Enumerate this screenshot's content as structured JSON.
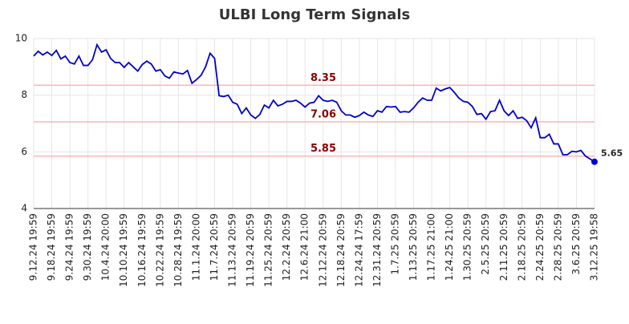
{
  "chart_data": {
    "type": "line",
    "title": "ULBI Long Term Signals",
    "categories": [
      "9.12.24 19:59",
      null,
      null,
      null,
      "9.18.24 19:59",
      null,
      null,
      null,
      "9.24.24 19:59",
      null,
      null,
      null,
      "9.30.24 19:59",
      null,
      null,
      null,
      "10.4.24 20:00",
      null,
      null,
      null,
      "10.10.24 19:59",
      null,
      null,
      null,
      "10.16.24 19:59",
      null,
      null,
      null,
      "10.22.24 19:59",
      null,
      null,
      null,
      "10.28.24 19:59",
      null,
      null,
      null,
      "11.1.24 20:00",
      null,
      null,
      null,
      "11.7.24 20:59",
      null,
      null,
      null,
      "11.13.24 20:59",
      null,
      null,
      null,
      "11.19.24 20:59",
      null,
      null,
      null,
      "11.25.24 20:59",
      null,
      null,
      null,
      "12.2.24 20:59",
      null,
      null,
      null,
      "12.6.24 21:00",
      null,
      null,
      null,
      "12.12.24 20:59",
      null,
      null,
      null,
      "12.18.24 20:59",
      null,
      null,
      null,
      "12.24.24 17:59",
      null,
      null,
      null,
      "12.31.24 20:59",
      null,
      null,
      null,
      "1.7.25 20:59",
      null,
      null,
      null,
      "1.13.25 20:59",
      null,
      null,
      null,
      "1.17.25 21:00",
      null,
      null,
      null,
      "1.24.25 21:00",
      null,
      null,
      null,
      "1.30.25 20:59",
      null,
      null,
      null,
      "2.5.25 20:59",
      null,
      null,
      null,
      "2.11.25 20:59",
      null,
      null,
      null,
      "2.18.25 20:59",
      null,
      null,
      null,
      "2.24.25 20:59",
      null,
      null,
      null,
      "2.28.25 20:59",
      null,
      null,
      null,
      "3.6.25 20:59",
      null,
      null,
      null,
      "3.12.25 19:58"
    ],
    "values": [
      9.38,
      9.55,
      9.42,
      9.52,
      9.4,
      9.58,
      9.28,
      9.38,
      9.15,
      9.1,
      9.38,
      9.05,
      9.05,
      9.25,
      9.78,
      9.52,
      9.6,
      9.3,
      9.15,
      9.15,
      8.98,
      9.15,
      9.0,
      8.85,
      9.08,
      9.2,
      9.1,
      8.85,
      8.9,
      8.68,
      8.6,
      8.82,
      8.78,
      8.75,
      8.87,
      8.42,
      8.55,
      8.7,
      9.0,
      9.48,
      9.3,
      7.98,
      7.95,
      8.0,
      7.75,
      7.68,
      7.35,
      7.55,
      7.3,
      7.18,
      7.32,
      7.65,
      7.55,
      7.82,
      7.62,
      7.68,
      7.78,
      7.78,
      7.82,
      7.72,
      7.58,
      7.72,
      7.75,
      7.98,
      7.82,
      7.78,
      7.82,
      7.75,
      7.45,
      7.3,
      7.3,
      7.22,
      7.28,
      7.4,
      7.3,
      7.25,
      7.45,
      7.4,
      7.6,
      7.58,
      7.6,
      7.4,
      7.42,
      7.4,
      7.55,
      7.75,
      7.9,
      7.82,
      7.82,
      8.25,
      8.15,
      8.22,
      8.27,
      8.1,
      7.9,
      7.78,
      7.75,
      7.6,
      7.32,
      7.35,
      7.15,
      7.42,
      7.45,
      7.82,
      7.45,
      7.28,
      7.45,
      7.18,
      7.22,
      7.1,
      6.85,
      7.2,
      6.5,
      6.5,
      6.62,
      6.28,
      6.28,
      5.9,
      5.9,
      6.02,
      6.0,
      6.05,
      5.85,
      5.75,
      5.65
    ],
    "color": "#0000cc",
    "reference_lines": [
      {
        "value": 8.35,
        "color": "#ffb3b3",
        "label_color": "#8b0000"
      },
      {
        "value": 7.06,
        "color": "#ffb3b3",
        "label_color": "#8b0000"
      },
      {
        "value": 5.85,
        "color": "#ffb3b3",
        "label_color": "#8b0000"
      }
    ],
    "ylim": [
      4,
      10
    ],
    "yticks": [
      4,
      6,
      8,
      10
    ],
    "grid": true
  }
}
